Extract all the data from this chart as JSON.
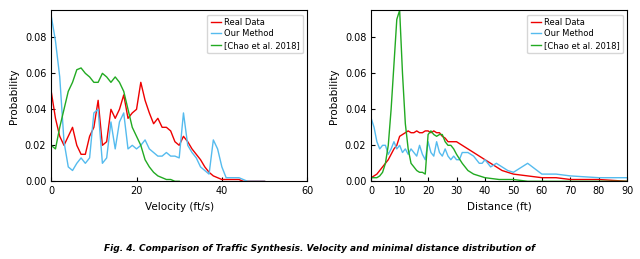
{
  "left_plot": {
    "xlabel": "Velocity (ft/s)",
    "ylabel": "Probability",
    "xlim": [
      0,
      60
    ],
    "ylim": [
      0,
      0.095
    ],
    "yticks": [
      0,
      0.02,
      0.04,
      0.06,
      0.08
    ],
    "xticks": [
      0,
      20,
      40,
      60
    ],
    "real_data_x": [
      0,
      1,
      2,
      3,
      4,
      5,
      6,
      7,
      8,
      9,
      10,
      11,
      12,
      13,
      14,
      15,
      16,
      17,
      18,
      19,
      20,
      21,
      22,
      23,
      24,
      25,
      26,
      27,
      28,
      29,
      30,
      31,
      32,
      33,
      34,
      35,
      36,
      37,
      38,
      39,
      40,
      41,
      42,
      43,
      44,
      45,
      46,
      47,
      48,
      49,
      50
    ],
    "real_data_y": [
      0.05,
      0.035,
      0.025,
      0.02,
      0.025,
      0.03,
      0.02,
      0.015,
      0.015,
      0.025,
      0.03,
      0.045,
      0.02,
      0.022,
      0.04,
      0.035,
      0.04,
      0.048,
      0.035,
      0.038,
      0.04,
      0.055,
      0.045,
      0.038,
      0.032,
      0.035,
      0.03,
      0.03,
      0.028,
      0.022,
      0.02,
      0.025,
      0.022,
      0.018,
      0.015,
      0.012,
      0.008,
      0.005,
      0.003,
      0.002,
      0.001,
      0.001,
      0.001,
      0.001,
      0.001,
      0.0,
      0.0,
      0.0,
      0.0,
      0.0,
      0.0
    ],
    "our_method_x": [
      0,
      1,
      2,
      3,
      4,
      5,
      6,
      7,
      8,
      9,
      10,
      11,
      12,
      13,
      14,
      15,
      16,
      17,
      18,
      19,
      20,
      21,
      22,
      23,
      24,
      25,
      26,
      27,
      28,
      29,
      30,
      31,
      32,
      33,
      34,
      35,
      36,
      37,
      38,
      39,
      40,
      41,
      42,
      43,
      44,
      45,
      46,
      47,
      48,
      49,
      50
    ],
    "our_method_y": [
      0.092,
      0.078,
      0.058,
      0.022,
      0.008,
      0.006,
      0.01,
      0.013,
      0.01,
      0.013,
      0.038,
      0.04,
      0.01,
      0.013,
      0.033,
      0.018,
      0.033,
      0.038,
      0.018,
      0.02,
      0.018,
      0.02,
      0.023,
      0.018,
      0.016,
      0.014,
      0.014,
      0.016,
      0.014,
      0.014,
      0.013,
      0.038,
      0.02,
      0.016,
      0.013,
      0.008,
      0.006,
      0.004,
      0.023,
      0.018,
      0.008,
      0.002,
      0.002,
      0.002,
      0.002,
      0.001,
      0.0,
      0.0,
      0.0,
      0.0,
      0.0
    ],
    "chao_x": [
      0,
      1,
      2,
      3,
      4,
      5,
      6,
      7,
      8,
      9,
      10,
      11,
      12,
      13,
      14,
      15,
      16,
      17,
      18,
      19,
      20,
      21,
      22,
      23,
      24,
      25,
      26,
      27,
      28,
      29,
      30
    ],
    "chao_y": [
      0.02,
      0.018,
      0.03,
      0.04,
      0.05,
      0.055,
      0.062,
      0.063,
      0.06,
      0.058,
      0.055,
      0.055,
      0.06,
      0.058,
      0.055,
      0.058,
      0.055,
      0.05,
      0.04,
      0.03,
      0.025,
      0.02,
      0.012,
      0.008,
      0.005,
      0.003,
      0.002,
      0.001,
      0.001,
      0.0,
      0.0
    ]
  },
  "right_plot": {
    "xlabel": "Distance (ft)",
    "ylabel": "Probability",
    "xlim": [
      0,
      90
    ],
    "ylim": [
      0,
      0.095
    ],
    "yticks": [
      0,
      0.02,
      0.04,
      0.06,
      0.08
    ],
    "xticks": [
      0,
      10,
      20,
      30,
      40,
      50,
      60,
      70,
      80,
      90
    ],
    "real_data_x": [
      0,
      1,
      2,
      3,
      4,
      5,
      6,
      7,
      8,
      9,
      10,
      11,
      12,
      13,
      14,
      15,
      16,
      17,
      18,
      19,
      20,
      21,
      22,
      23,
      24,
      25,
      26,
      27,
      28,
      29,
      30,
      31,
      32,
      33,
      34,
      35,
      36,
      37,
      38,
      39,
      40,
      42,
      44,
      46,
      48,
      50,
      55,
      60,
      65,
      70,
      80,
      90
    ],
    "real_data_y": [
      0.002,
      0.003,
      0.004,
      0.006,
      0.008,
      0.01,
      0.012,
      0.015,
      0.018,
      0.02,
      0.025,
      0.026,
      0.027,
      0.028,
      0.027,
      0.027,
      0.028,
      0.027,
      0.027,
      0.028,
      0.028,
      0.027,
      0.028,
      0.027,
      0.027,
      0.025,
      0.024,
      0.022,
      0.022,
      0.022,
      0.022,
      0.021,
      0.02,
      0.019,
      0.018,
      0.017,
      0.016,
      0.015,
      0.014,
      0.013,
      0.012,
      0.01,
      0.008,
      0.006,
      0.005,
      0.004,
      0.003,
      0.002,
      0.002,
      0.001,
      0.001,
      0.0
    ],
    "our_method_x": [
      0,
      1,
      2,
      3,
      4,
      5,
      6,
      7,
      8,
      9,
      10,
      11,
      12,
      13,
      14,
      15,
      16,
      17,
      18,
      19,
      20,
      21,
      22,
      23,
      24,
      25,
      26,
      27,
      28,
      29,
      30,
      31,
      32,
      33,
      34,
      35,
      36,
      37,
      38,
      39,
      40,
      42,
      44,
      46,
      48,
      50,
      55,
      60,
      65,
      70,
      80,
      90
    ],
    "our_method_y": [
      0.035,
      0.03,
      0.022,
      0.018,
      0.02,
      0.02,
      0.015,
      0.018,
      0.022,
      0.018,
      0.02,
      0.016,
      0.018,
      0.015,
      0.018,
      0.016,
      0.014,
      0.02,
      0.015,
      0.012,
      0.022,
      0.016,
      0.014,
      0.022,
      0.016,
      0.014,
      0.018,
      0.014,
      0.012,
      0.014,
      0.012,
      0.012,
      0.016,
      0.016,
      0.016,
      0.015,
      0.014,
      0.012,
      0.01,
      0.01,
      0.012,
      0.008,
      0.01,
      0.008,
      0.006,
      0.005,
      0.01,
      0.004,
      0.004,
      0.003,
      0.002,
      0.002
    ],
    "chao_x": [
      0,
      1,
      2,
      3,
      4,
      5,
      6,
      7,
      8,
      9,
      10,
      11,
      12,
      13,
      14,
      15,
      16,
      17,
      18,
      19,
      20,
      21,
      22,
      23,
      24,
      25,
      26,
      27,
      28,
      29,
      30,
      32,
      34,
      36,
      38,
      40,
      45,
      50,
      55,
      60,
      70,
      80,
      90
    ],
    "chao_y": [
      0.002,
      0.002,
      0.002,
      0.003,
      0.005,
      0.01,
      0.02,
      0.04,
      0.065,
      0.09,
      0.095,
      0.06,
      0.032,
      0.018,
      0.01,
      0.008,
      0.006,
      0.005,
      0.005,
      0.004,
      0.026,
      0.028,
      0.026,
      0.025,
      0.026,
      0.026,
      0.022,
      0.02,
      0.02,
      0.018,
      0.015,
      0.01,
      0.006,
      0.004,
      0.003,
      0.002,
      0.001,
      0.001,
      0.0,
      0.0,
      0.0,
      0.0,
      0.0
    ]
  },
  "colors": {
    "real_data": "#EE0000",
    "our_method": "#55BBEE",
    "chao": "#22AA22"
  },
  "legend_labels": [
    "Real Data",
    "Our Method",
    "[Chao et al. 2018]"
  ],
  "line_width": 1.0,
  "caption": "Fig. 4. Comparison of Traffic Synthesis. Velocity and minimal distance distribution of"
}
